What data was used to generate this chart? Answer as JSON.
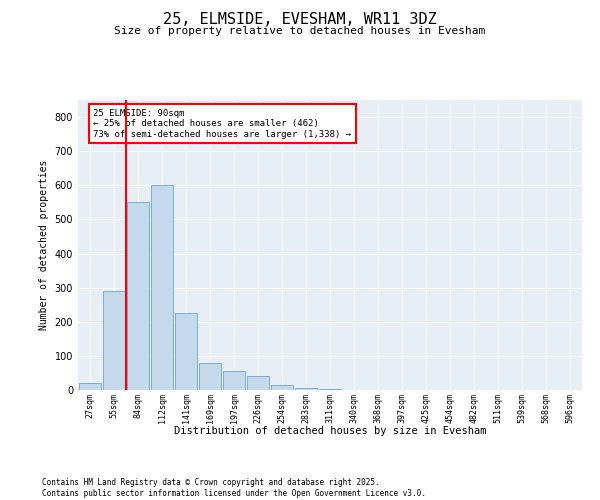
{
  "title1": "25, ELMSIDE, EVESHAM, WR11 3DZ",
  "title2": "Size of property relative to detached houses in Evesham",
  "xlabel": "Distribution of detached houses by size in Evesham",
  "ylabel": "Number of detached properties",
  "categories": [
    "27sqm",
    "55sqm",
    "84sqm",
    "112sqm",
    "141sqm",
    "169sqm",
    "197sqm",
    "226sqm",
    "254sqm",
    "283sqm",
    "311sqm",
    "340sqm",
    "368sqm",
    "397sqm",
    "425sqm",
    "454sqm",
    "482sqm",
    "511sqm",
    "539sqm",
    "568sqm",
    "596sqm"
  ],
  "values": [
    20,
    290,
    550,
    600,
    225,
    80,
    55,
    40,
    15,
    5,
    2,
    0,
    0,
    0,
    0,
    0,
    0,
    0,
    0,
    0,
    0
  ],
  "bar_color": "#c5d9ed",
  "bar_edge_color": "#7aaed6",
  "red_line_x": 1.5,
  "annotation_line1": "25 ELMSIDE: 90sqm",
  "annotation_line2": "← 25% of detached houses are smaller (462)",
  "annotation_line3": "73% of semi-detached houses are larger (1,338) →",
  "ylim_max": 850,
  "yticks": [
    0,
    100,
    200,
    300,
    400,
    500,
    600,
    700,
    800
  ],
  "bg_color": "#e8eef6",
  "footer1": "Contains HM Land Registry data © Crown copyright and database right 2025.",
  "footer2": "Contains public sector information licensed under the Open Government Licence v3.0."
}
